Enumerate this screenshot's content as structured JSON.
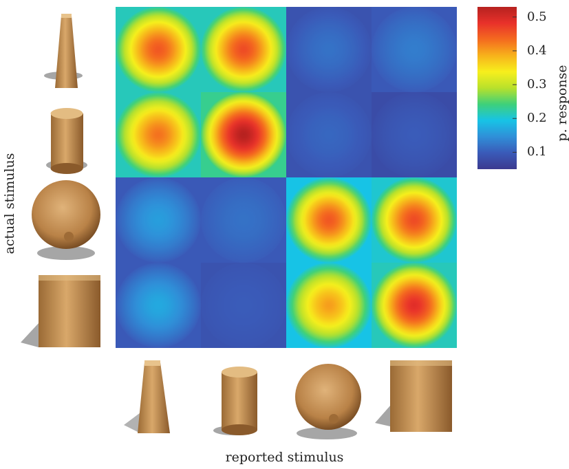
{
  "chart_data": {
    "type": "heatmap",
    "title": "",
    "xlabel": "reported stimulus",
    "ylabel": "actual stimulus",
    "colorbar_label": "p. response",
    "x_categories": [
      "frustum",
      "cylinder",
      "sphere",
      "cube"
    ],
    "y_categories": [
      "frustum",
      "cylinder",
      "sphere",
      "cube"
    ],
    "colorbar_ticks": [
      0.5,
      0.4,
      0.3,
      0.2,
      0.1
    ],
    "colorbar_range": [
      0.05,
      0.53
    ],
    "values": [
      [
        0.45,
        0.46,
        0.12,
        0.13
      ],
      [
        0.43,
        0.53,
        0.11,
        0.1
      ],
      [
        0.16,
        0.12,
        0.45,
        0.46
      ],
      [
        0.17,
        0.1,
        0.4,
        0.49
      ]
    ],
    "edge_values": [
      [
        0.22,
        0.22,
        0.09,
        0.1
      ],
      [
        0.22,
        0.24,
        0.09,
        0.08
      ],
      [
        0.1,
        0.1,
        0.2,
        0.21
      ],
      [
        0.1,
        0.09,
        0.2,
        0.22
      ]
    ],
    "colormap": [
      "#3b3a8f",
      "#3a5ab8",
      "#2f8fd8",
      "#17c3e6",
      "#3ed07a",
      "#b8e12b",
      "#f7ef1c",
      "#f7b21b",
      "#f46a1f",
      "#e8312a",
      "#b6211f"
    ]
  },
  "axis_text": {
    "xlabel": "reported stimulus",
    "ylabel": "actual stimulus",
    "colorbar_label": "p. response"
  },
  "colorbar_ticks_text": [
    "0.5",
    "0.4",
    "0.3",
    "0.2",
    "0.1"
  ]
}
